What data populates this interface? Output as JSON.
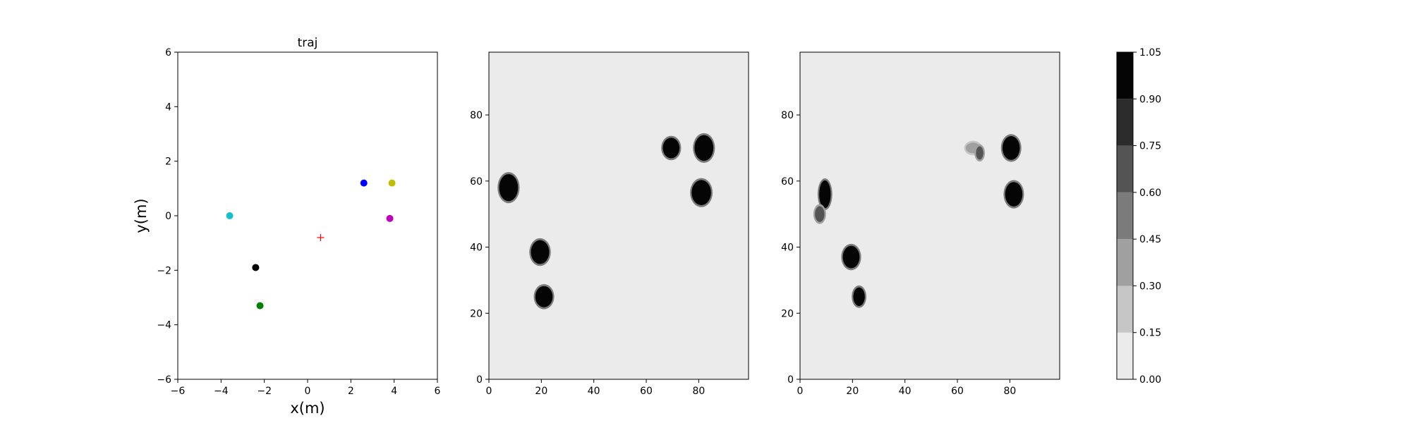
{
  "chart_data": [
    {
      "type": "scatter",
      "title": "traj",
      "xlabel": "x(m)",
      "ylabel": "y(m)",
      "xlim": [
        -6,
        6
      ],
      "ylim": [
        -6,
        6
      ],
      "xticks": [
        "−6",
        "−4",
        "−2",
        "0",
        "2",
        "4",
        "6"
      ],
      "yticks": [
        "−6",
        "−4",
        "−2",
        "0",
        "2",
        "4",
        "6"
      ],
      "grid": false,
      "points": [
        {
          "x": -3.6,
          "y": 0.0,
          "color": "#17becf",
          "marker": "circle"
        },
        {
          "x": -2.4,
          "y": -1.9,
          "color": "#000000",
          "marker": "circle"
        },
        {
          "x": -2.2,
          "y": -3.3,
          "color": "#008000",
          "marker": "circle"
        },
        {
          "x": 2.6,
          "y": 1.2,
          "color": "#0000ff",
          "marker": "circle"
        },
        {
          "x": 3.9,
          "y": 1.2,
          "color": "#bfbf00",
          "marker": "circle"
        },
        {
          "x": 3.8,
          "y": -0.1,
          "color": "#bf00bf",
          "marker": "circle"
        },
        {
          "x": 0.6,
          "y": -0.8,
          "color": "#ff0000",
          "marker": "plus"
        }
      ]
    },
    {
      "type": "heatmap",
      "title": "",
      "xlim": [
        0,
        99
      ],
      "ylim": [
        0,
        99
      ],
      "xticks": [
        "0",
        "20",
        "40",
        "60",
        "80"
      ],
      "yticks": [
        "0",
        "20",
        "40",
        "60",
        "80"
      ],
      "background_level": 0.0,
      "blobs": [
        {
          "x": 7.5,
          "y": 58,
          "rx": 3.6,
          "ry": 4.1,
          "value": 1.0
        },
        {
          "x": 19.5,
          "y": 38.5,
          "rx": 3.5,
          "ry": 3.6,
          "value": 1.0
        },
        {
          "x": 21,
          "y": 25,
          "rx": 3.3,
          "ry": 3.2,
          "value": 1.0
        },
        {
          "x": 69.5,
          "y": 70,
          "rx": 3.2,
          "ry": 3.1,
          "value": 1.0
        },
        {
          "x": 82,
          "y": 70,
          "rx": 3.6,
          "ry": 3.9,
          "value": 1.0
        },
        {
          "x": 81,
          "y": 56.5,
          "rx": 3.7,
          "ry": 3.8,
          "value": 1.0
        }
      ]
    },
    {
      "type": "heatmap",
      "title": "",
      "xlim": [
        0,
        99
      ],
      "ylim": [
        0,
        99
      ],
      "xticks": [
        "0",
        "20",
        "40",
        "60",
        "80"
      ],
      "yticks": [
        "0",
        "20",
        "40",
        "60",
        "80"
      ],
      "background_level": 0.0,
      "blobs": [
        {
          "x": 9.5,
          "y": 56,
          "rx": 2.2,
          "ry": 4.2,
          "value": 0.95
        },
        {
          "x": 7.5,
          "y": 50,
          "rx": 1.8,
          "ry": 2.4,
          "value": 0.7
        },
        {
          "x": 19.5,
          "y": 37,
          "rx": 3.2,
          "ry": 3.4,
          "value": 1.0
        },
        {
          "x": 22.5,
          "y": 25,
          "rx": 2.2,
          "ry": 2.8,
          "value": 0.95
        },
        {
          "x": 66,
          "y": 70,
          "rx": 2.8,
          "ry": 1.6,
          "value": 0.35
        },
        {
          "x": 68.5,
          "y": 68.5,
          "rx": 1.4,
          "ry": 2.0,
          "value": 0.6
        },
        {
          "x": 80.5,
          "y": 70,
          "rx": 3.3,
          "ry": 3.6,
          "value": 1.0
        },
        {
          "x": 81.5,
          "y": 56,
          "rx": 3.3,
          "ry": 3.7,
          "value": 1.0
        }
      ]
    }
  ],
  "colorbar": {
    "levels": [
      0.0,
      0.15,
      0.3,
      0.45,
      0.6,
      0.75,
      0.9,
      1.05
    ],
    "tick_labels": [
      "0.00",
      "0.15",
      "0.30",
      "0.45",
      "0.60",
      "0.75",
      "0.90",
      "1.05"
    ],
    "colors": [
      "#ebebeb",
      "#c6c6c6",
      "#a0a0a0",
      "#7b7b7b",
      "#545454",
      "#2c2c2c",
      "#050505"
    ]
  }
}
